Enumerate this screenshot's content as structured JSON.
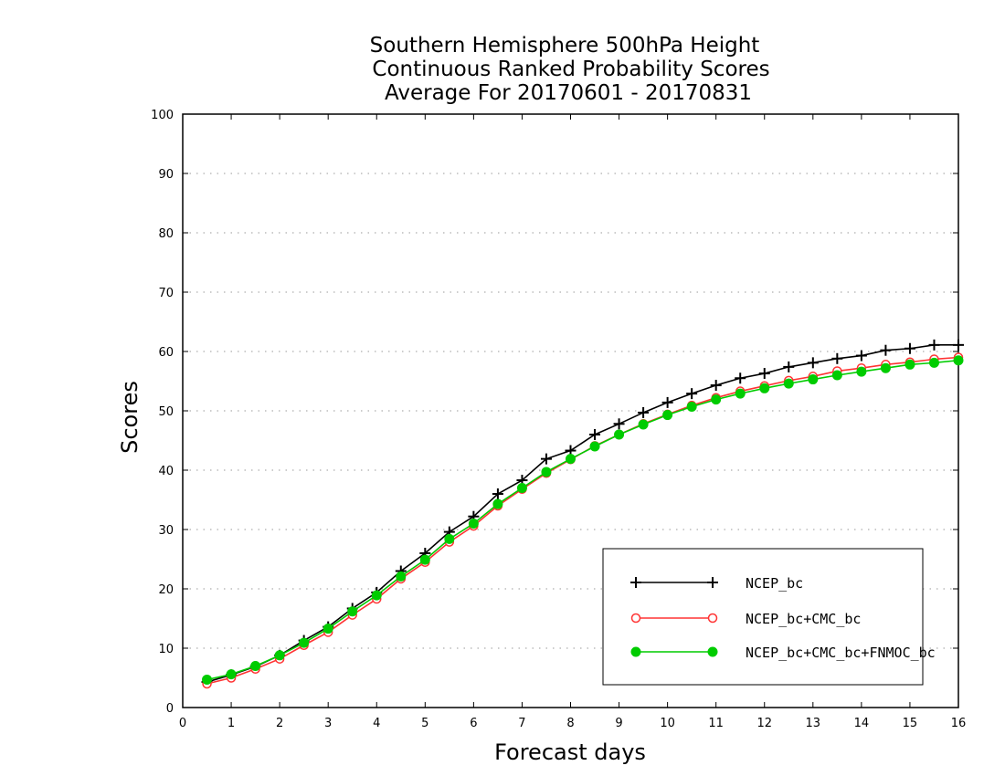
{
  "chart_data": {
    "type": "line",
    "title": [
      "Southern Hemisphere 500hPa Height",
      "Continuous Ranked Probability Scores",
      "Average For 20170601 - 20170831"
    ],
    "xlabel": "Forecast days",
    "ylabel": "Scores",
    "xlim": [
      0,
      16
    ],
    "ylim": [
      0,
      100
    ],
    "xticks": [
      0,
      1,
      2,
      3,
      4,
      5,
      6,
      7,
      8,
      9,
      10,
      11,
      12,
      13,
      14,
      15,
      16
    ],
    "yticks": [
      0,
      10,
      20,
      30,
      40,
      50,
      60,
      70,
      80,
      90,
      100
    ],
    "grid": "horizontal dotted",
    "legend_position": "bottom-right",
    "x": [
      0.5,
      1.0,
      1.5,
      2.0,
      2.5,
      3.0,
      3.5,
      4.0,
      4.5,
      5.0,
      5.5,
      6.0,
      6.5,
      7.0,
      7.5,
      8.0,
      8.5,
      9.0,
      9.5,
      10.0,
      10.5,
      11.0,
      11.5,
      12.0,
      12.5,
      13.0,
      13.5,
      14.0,
      14.5,
      15.0,
      15.5,
      16.0
    ],
    "series": [
      {
        "name": "NCEP_bc",
        "color": "#000000",
        "marker": "plus",
        "values": [
          4.3,
          5.5,
          6.9,
          8.8,
          11.3,
          13.6,
          16.7,
          19.4,
          23.0,
          26.0,
          29.6,
          32.2,
          36.0,
          38.3,
          41.9,
          43.3,
          46.0,
          47.8,
          49.7,
          51.4,
          52.9,
          54.3,
          55.5,
          56.3,
          57.4,
          58.1,
          58.8,
          59.3,
          60.2,
          60.5,
          61.1,
          61.1
        ]
      },
      {
        "name": "NCEP_bc+CMC_bc",
        "color": "#ff3333",
        "marker": "open-circle",
        "values": [
          4.0,
          5.0,
          6.5,
          8.2,
          10.5,
          12.7,
          15.6,
          18.3,
          21.7,
          24.5,
          27.9,
          30.6,
          34.0,
          36.8,
          39.5,
          41.8,
          44.1,
          46.0,
          47.8,
          49.4,
          50.9,
          52.2,
          53.3,
          54.2,
          55.1,
          55.8,
          56.7,
          57.2,
          57.8,
          58.2,
          58.7,
          59.0
        ]
      },
      {
        "name": "NCEP_bc+CMC_bc+FNMOC_bc",
        "color": "#00cc00",
        "marker": "filled-circle",
        "values": [
          4.7,
          5.6,
          7.0,
          8.8,
          10.9,
          13.3,
          16.2,
          18.9,
          22.1,
          24.9,
          28.4,
          31.0,
          34.3,
          37.0,
          39.7,
          41.9,
          44.0,
          46.0,
          47.7,
          49.3,
          50.7,
          51.9,
          52.9,
          53.8,
          54.6,
          55.3,
          56.0,
          56.6,
          57.2,
          57.8,
          58.1,
          58.5
        ]
      }
    ]
  }
}
